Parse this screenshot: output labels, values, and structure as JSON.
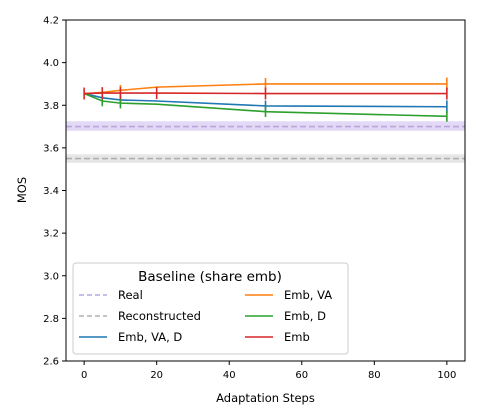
{
  "chart_data": {
    "type": "line",
    "xlabel": "Adaptation Steps",
    "ylabel": "MOS",
    "xlim": [
      -5,
      105
    ],
    "ylim": [
      2.6,
      4.2
    ],
    "xticks": [
      0,
      20,
      40,
      60,
      80,
      100
    ],
    "yticks": [
      2.6,
      2.8,
      3.0,
      3.2,
      3.4,
      3.6,
      3.8,
      4.0,
      4.2
    ],
    "grid": false,
    "legend": {
      "title": "Baseline (share emb)",
      "placement": "lower-left",
      "columns": 2
    },
    "baselines": [
      {
        "name": "Real",
        "value": 3.7,
        "band": [
          3.68,
          3.725
        ],
        "color": "#b7a5e0",
        "band_color": "#e3d9f5"
      },
      {
        "name": "Reconstructed",
        "value": 3.55,
        "band": [
          3.53,
          3.57
        ],
        "color": "#b0b0b0",
        "band_color": "#e6e6e6"
      }
    ],
    "series": [
      {
        "name": "Emb, VA, D",
        "color": "#1f77b4",
        "x": [
          0,
          5,
          10,
          20,
          50,
          100
        ],
        "y": [
          3.855,
          3.835,
          3.825,
          3.82,
          3.797,
          3.793
        ],
        "err": [
          0,
          0,
          0.018,
          0,
          0.025,
          0.03
        ]
      },
      {
        "name": "Emb, VA",
        "color": "#ff7f0e",
        "x": [
          0,
          5,
          10,
          20,
          50,
          100
        ],
        "y": [
          3.855,
          3.86,
          3.87,
          3.885,
          3.9,
          3.9
        ],
        "err": [
          0,
          0,
          0.025,
          0,
          0.028,
          0.03
        ]
      },
      {
        "name": "Emb, D",
        "color": "#2ca02c",
        "x": [
          0,
          5,
          10,
          20,
          50,
          100
        ],
        "y": [
          3.855,
          3.82,
          3.81,
          3.805,
          3.77,
          3.748
        ],
        "err": [
          0,
          0.025,
          0.025,
          0,
          0.025,
          0.025
        ]
      },
      {
        "name": "Emb",
        "color": "#d62728",
        "x": [
          0,
          5,
          10,
          20,
          50,
          100
        ],
        "y": [
          3.855,
          3.857,
          3.857,
          3.857,
          3.855,
          3.855
        ],
        "err": [
          0.028,
          0.028,
          0.028,
          0.028,
          0.028,
          0.028
        ]
      }
    ],
    "legend_order": [
      "Real",
      "Reconstructed",
      "Emb, VA, D",
      "Emb, VA",
      "Emb, D",
      "Emb"
    ]
  }
}
